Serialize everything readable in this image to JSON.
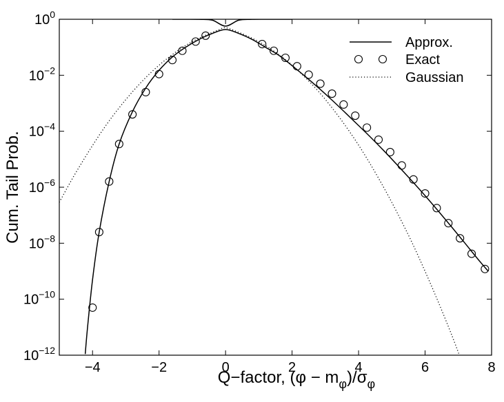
{
  "chart_data": {
    "type": "line",
    "title": "",
    "xlabel": "Q−factor, (φ − mφ)/σφ",
    "ylabel": "Cum. Tail Prob.",
    "yscale": "log",
    "xlim": [
      -5,
      8
    ],
    "ylim": [
      1e-12,
      1
    ],
    "grid": false,
    "legend_position": "top-right",
    "x_ticks": [
      {
        "value": -4,
        "label": "−4"
      },
      {
        "value": -2,
        "label": "−2"
      },
      {
        "value": 0,
        "label": "0"
      },
      {
        "value": 2,
        "label": "2"
      },
      {
        "value": 4,
        "label": "4"
      },
      {
        "value": 6,
        "label": "6"
      },
      {
        "value": 8,
        "label": "8"
      }
    ],
    "y_ticks": [
      {
        "value": 0,
        "mantissa": "10",
        "exponent": "0"
      },
      {
        "value": -2,
        "mantissa": "10",
        "exponent": "−2"
      },
      {
        "value": -4,
        "mantissa": "10",
        "exponent": "−4"
      },
      {
        "value": -6,
        "mantissa": "10",
        "exponent": "−6"
      },
      {
        "value": -8,
        "mantissa": "10",
        "exponent": "−8"
      },
      {
        "value": -10,
        "mantissa": "10",
        "exponent": "−10"
      },
      {
        "value": -12,
        "mantissa": "10",
        "exponent": "−12"
      }
    ],
    "series": [
      {
        "name": "Approx.",
        "style": "solid",
        "x": [
          -4.22,
          -4.15,
          -4.0,
          -3.8,
          -3.5,
          -3.2,
          -2.8,
          -2.4,
          -2.0,
          -1.6,
          -1.2,
          -0.8,
          -0.4,
          0.0,
          0.4,
          0.8,
          1.2,
          1.6,
          2.0,
          2.4,
          2.8,
          3.2,
          3.6,
          4.0,
          4.4,
          4.8,
          5.2,
          5.6,
          6.0,
          6.4,
          6.8,
          7.2,
          7.6,
          7.9
        ],
        "y": [
          1.1e-12,
          1e-11,
          5e-10,
          2.5e-08,
          1.6e-06,
          3.5e-05,
          0.0005,
          0.0035,
          0.015,
          0.045,
          0.1,
          0.19,
          0.31,
          0.43,
          0.31,
          0.19,
          0.1,
          0.052,
          0.022,
          0.009,
          0.0035,
          0.0013,
          0.00046,
          0.00016,
          5.5e-05,
          1.8e-05,
          5.6e-06,
          1.7e-06,
          5e-07,
          1.4e-07,
          3.8e-08,
          1e-08,
          2.6e-09,
          1e-09
        ]
      },
      {
        "name": "Approx.",
        "style": "solid",
        "x": [
          -1.6,
          -1.2,
          -0.8,
          -0.4,
          0.0,
          0.4,
          0.8,
          1.2,
          1.6,
          2.0
        ],
        "y": [
          0.9999,
          0.998,
          0.99,
          0.93,
          0.57,
          0.93,
          0.99,
          0.998,
          0.9998,
          1.0
        ]
      },
      {
        "name": "Exact",
        "style": "circles",
        "x": [
          -4.0,
          -3.8,
          -3.5,
          -3.2,
          -2.8,
          -2.4,
          -2.0,
          -1.6,
          -1.3,
          -0.9,
          -0.6,
          1.1,
          1.45,
          1.8,
          2.15,
          2.5,
          2.85,
          3.2,
          3.55,
          3.9,
          4.25,
          4.6,
          4.95,
          5.3,
          5.65,
          6.0,
          6.35,
          6.7,
          7.05,
          7.4,
          7.8
        ],
        "y": [
          5e-11,
          2.5e-08,
          1.6e-06,
          3.5e-05,
          0.0004,
          0.0025,
          0.011,
          0.035,
          0.075,
          0.16,
          0.26,
          0.13,
          0.075,
          0.042,
          0.021,
          0.0105,
          0.005,
          0.0022,
          0.0009,
          0.00036,
          0.000135,
          5e-05,
          1.8e-05,
          6e-06,
          1.9e-06,
          6e-07,
          1.8e-07,
          5.2e-08,
          1.5e-08,
          4.2e-09,
          1.2e-09
        ]
      },
      {
        "name": "Gaussian",
        "style": "dotted",
        "x": [
          -5.0,
          -4.6,
          -4.2,
          -3.8,
          -3.4,
          -3.0,
          -2.6,
          -2.2,
          -1.8,
          -1.4,
          -1.0,
          -0.6,
          -0.2,
          0.0,
          0.4,
          0.8,
          1.2,
          1.6,
          2.0,
          2.4,
          2.8,
          3.2,
          3.6,
          4.0,
          4.4,
          4.8,
          5.2,
          5.6,
          6.0,
          6.4,
          6.8,
          7.1
        ],
        "y": [
          2.9e-07,
          2.1e-06,
          1.3e-05,
          7.2e-05,
          0.00034,
          0.00135,
          0.0047,
          0.014,
          0.036,
          0.081,
          0.16,
          0.27,
          0.42,
          0.5,
          0.34,
          0.21,
          0.115,
          0.055,
          0.023,
          0.0082,
          0.0026,
          0.00069,
          0.00016,
          3.2e-05,
          5.4e-06,
          7.9e-07,
          1e-07,
          1.1e-08,
          9.9e-10,
          7.8e-11,
          5.3e-12,
          6e-13
        ]
      }
    ],
    "legend": [
      {
        "label": "Approx.",
        "style": "solid"
      },
      {
        "label": "Exact",
        "style": "circles"
      },
      {
        "label": "Gaussian",
        "style": "dotted"
      }
    ]
  }
}
